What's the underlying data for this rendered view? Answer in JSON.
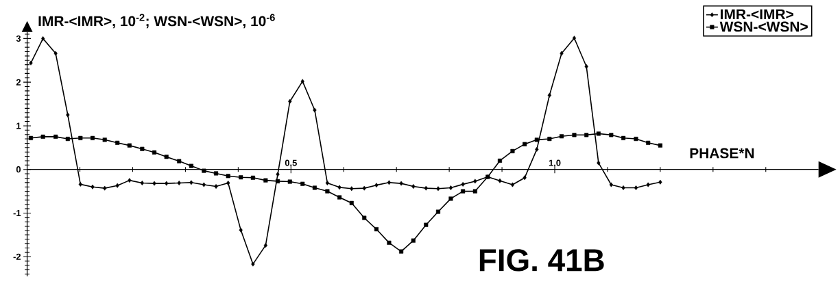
{
  "chart_data": {
    "type": "line",
    "ylabel": "IMR-<IMR>, 10$^{-2}$; WSN-<WSN>, 10$^{-6}$",
    "xlabel": "PHASE*N",
    "annotations": [
      "FIG. 41B"
    ],
    "x": [
      0.007,
      0.03,
      0.054,
      0.077,
      0.101,
      0.124,
      0.147,
      0.171,
      0.194,
      0.218,
      0.241,
      0.264,
      0.288,
      0.311,
      0.335,
      0.358,
      0.381,
      0.405,
      0.428,
      0.452,
      0.475,
      0.498,
      0.522,
      0.545,
      0.569,
      0.592,
      0.615,
      0.639,
      0.662,
      0.686,
      0.709,
      0.732,
      0.756,
      0.779,
      0.803,
      0.826,
      0.849,
      0.873,
      0.896,
      0.92,
      0.943,
      0.966,
      0.99,
      1.013,
      1.037,
      1.06,
      1.083,
      1.107,
      1.13,
      1.154,
      1.177,
      1.2
    ],
    "series": [
      {
        "name": "IMR-<IMR>",
        "color": "#000000",
        "marker": "diamond",
        "values": [
          2.44,
          3.0,
          2.66,
          1.25,
          -0.34,
          -0.4,
          -0.43,
          -0.37,
          -0.25,
          -0.31,
          -0.32,
          -0.32,
          -0.31,
          -0.3,
          -0.35,
          -0.39,
          -0.31,
          -1.39,
          -2.17,
          -1.74,
          -0.11,
          1.56,
          2.02,
          1.36,
          -0.31,
          -0.41,
          -0.44,
          -0.43,
          -0.36,
          -0.3,
          -0.32,
          -0.39,
          -0.43,
          -0.44,
          -0.42,
          -0.34,
          -0.27,
          -0.17,
          -0.26,
          -0.35,
          -0.19,
          0.46,
          1.7,
          2.66,
          3.01,
          2.36,
          0.15,
          -0.35,
          -0.42,
          -0.42,
          -0.35,
          -0.29
        ]
      },
      {
        "name": "WSN-<WSN>",
        "color": "#000000",
        "marker": "square",
        "values": [
          0.72,
          0.75,
          0.75,
          0.7,
          0.72,
          0.72,
          0.68,
          0.61,
          0.55,
          0.47,
          0.39,
          0.29,
          0.19,
          0.08,
          -0.03,
          -0.09,
          -0.15,
          -0.18,
          -0.19,
          -0.25,
          -0.27,
          -0.28,
          -0.33,
          -0.42,
          -0.5,
          -0.64,
          -0.77,
          -1.11,
          -1.37,
          -1.68,
          -1.88,
          -1.63,
          -1.27,
          -0.97,
          -0.67,
          -0.5,
          -0.5,
          -0.17,
          0.2,
          0.42,
          0.58,
          0.68,
          0.7,
          0.76,
          0.79,
          0.79,
          0.82,
          0.79,
          0.72,
          0.7,
          0.61,
          0.55
        ]
      }
    ],
    "xlim": [
      0,
      1.5
    ],
    "ylim": [
      -2.45,
      3.15
    ],
    "xticks": [
      {
        "value": 0.1,
        "label": null
      },
      {
        "value": 0.2,
        "label": null
      },
      {
        "value": 0.3,
        "label": null
      },
      {
        "value": 0.4,
        "label": null
      },
      0.5,
      {
        "value": 0.6,
        "label": null
      },
      {
        "value": 0.7,
        "label": null
      },
      {
        "value": 0.8,
        "label": null
      },
      {
        "value": 0.9,
        "label": null
      },
      {
        "value": 1.0,
        "label": "1.0"
      },
      {
        "value": 1.1,
        "label": null
      },
      {
        "value": 1.2,
        "label": null
      },
      {
        "value": 1.3,
        "label": null
      },
      {
        "value": 1.4,
        "label": null
      }
    ],
    "yticks": [
      {
        "value": -2.4,
        "label": null
      },
      {
        "value": -2.3,
        "label": null
      },
      {
        "value": -2.2,
        "label": null
      },
      {
        "value": -2.1,
        "label": null
      },
      -2,
      {
        "value": -1.9,
        "label": null
      },
      {
        "value": -1.8,
        "label": null
      },
      {
        "value": -1.7,
        "label": null
      },
      {
        "value": -1.6,
        "label": null
      },
      {
        "value": -1.5,
        "label": null
      },
      {
        "value": -1.4,
        "label": null
      },
      {
        "value": -1.3,
        "label": null
      },
      {
        "value": -1.2,
        "label": null
      },
      {
        "value": -1.1,
        "label": null
      },
      -1,
      {
        "value": -0.9,
        "label": null
      },
      {
        "value": -0.8,
        "label": null
      },
      {
        "value": -0.7,
        "label": null
      },
      {
        "value": -0.6,
        "label": null
      },
      {
        "value": -0.5,
        "label": null
      },
      {
        "value": -0.4,
        "label": null
      },
      {
        "value": -0.3,
        "label": null
      },
      {
        "value": -0.2,
        "label": null
      },
      {
        "value": -0.1,
        "label": null
      },
      0,
      {
        "value": 0.1,
        "label": null
      },
      {
        "value": 0.2,
        "label": null
      },
      {
        "value": 0.3,
        "label": null
      },
      {
        "value": 0.4,
        "label": null
      },
      {
        "value": 0.5,
        "label": null
      },
      {
        "value": 0.6,
        "label": null
      },
      {
        "value": 0.7,
        "label": null
      },
      {
        "value": 0.8,
        "label": null
      },
      {
        "value": 0.9,
        "label": null
      },
      1,
      {
        "value": 1.1,
        "label": null
      },
      {
        "value": 1.2,
        "label": null
      },
      {
        "value": 1.3,
        "label": null
      },
      {
        "value": 1.4,
        "label": null
      },
      {
        "value": 1.5,
        "label": null
      },
      {
        "value": 1.6,
        "label": null
      },
      {
        "value": 1.7,
        "label": null
      },
      {
        "value": 1.8,
        "label": null
      },
      {
        "value": 1.9,
        "label": null
      },
      2,
      {
        "value": 2.1,
        "label": null
      },
      {
        "value": 2.2,
        "label": null
      },
      {
        "value": 2.3,
        "label": null
      },
      {
        "value": 2.4,
        "label": null
      },
      {
        "value": 2.5,
        "label": null
      },
      {
        "value": 2.6,
        "label": null
      },
      {
        "value": 2.7,
        "label": null
      },
      {
        "value": 2.8,
        "label": null
      },
      {
        "value": 2.9,
        "label": null
      },
      3,
      {
        "value": 3.1,
        "label": null
      }
    ],
    "legend": "top right"
  }
}
